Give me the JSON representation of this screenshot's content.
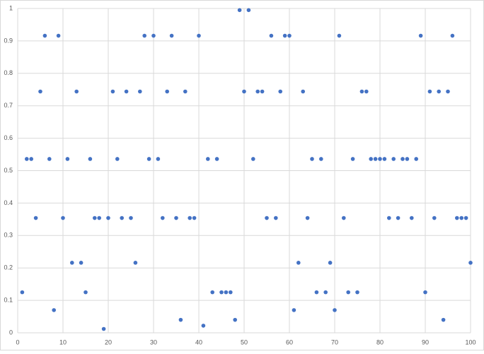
{
  "chart_data": {
    "type": "scatter",
    "x": [
      1,
      2,
      3,
      4,
      5,
      6,
      7,
      8,
      9,
      10,
      11,
      12,
      13,
      14,
      15,
      16,
      17,
      18,
      19,
      20,
      21,
      22,
      23,
      24,
      25,
      26,
      27,
      28,
      29,
      30,
      31,
      32,
      33,
      34,
      35,
      36,
      37,
      38,
      39,
      40,
      41,
      42,
      43,
      44,
      45,
      46,
      47,
      48,
      49,
      50,
      51,
      52,
      53,
      54,
      55,
      56,
      57,
      58,
      59,
      60,
      61,
      62,
      63,
      64,
      65,
      66,
      67,
      68,
      69,
      70,
      71,
      72,
      73,
      74,
      75,
      76,
      77,
      78,
      79,
      80,
      81,
      82,
      83,
      84,
      85,
      86,
      87,
      88,
      89,
      90,
      91,
      92,
      93,
      94,
      95,
      96,
      97,
      98,
      99,
      100
    ],
    "values": [
      0.125,
      0.536,
      0.536,
      0.354,
      0.744,
      0.916,
      0.536,
      0.07,
      0.916,
      0.354,
      0.536,
      0.216,
      0.744,
      0.216,
      0.125,
      0.536,
      0.354,
      0.354,
      0.012,
      0.354,
      0.744,
      0.536,
      0.354,
      0.744,
      0.354,
      0.216,
      0.744,
      0.916,
      0.536,
      0.916,
      0.536,
      0.354,
      0.744,
      0.916,
      0.354,
      0.04,
      0.744,
      0.354,
      0.354,
      0.916,
      0.022,
      0.536,
      0.125,
      0.536,
      0.125,
      0.125,
      0.125,
      0.04,
      0.995,
      0.744,
      0.995,
      0.536,
      0.744,
      0.744,
      0.354,
      0.916,
      0.354,
      0.744,
      0.916,
      0.916,
      0.07,
      0.216,
      0.744,
      0.354,
      0.536,
      0.125,
      0.536,
      0.125,
      0.216,
      0.07,
      0.916,
      0.354,
      0.125,
      0.536,
      0.125,
      0.744,
      0.744,
      0.536,
      0.536,
      0.536,
      0.536,
      0.354,
      0.536,
      0.354,
      0.536,
      0.536,
      0.354,
      0.536,
      0.916,
      0.125,
      0.744,
      0.354,
      0.744,
      0.04,
      0.744,
      0.916,
      0.354,
      0.354,
      0.354,
      0.216
    ],
    "color": "#4472c4",
    "xlim": [
      0,
      100
    ],
    "xticks": [
      0,
      10,
      20,
      30,
      40,
      50,
      60,
      70,
      80,
      90,
      100
    ],
    "ylim": [
      0,
      1
    ],
    "yticks": [
      0,
      0.1,
      0.2,
      0.3,
      0.4,
      0.5,
      0.6,
      0.7,
      0.8,
      0.9,
      1
    ],
    "grid": true
  }
}
